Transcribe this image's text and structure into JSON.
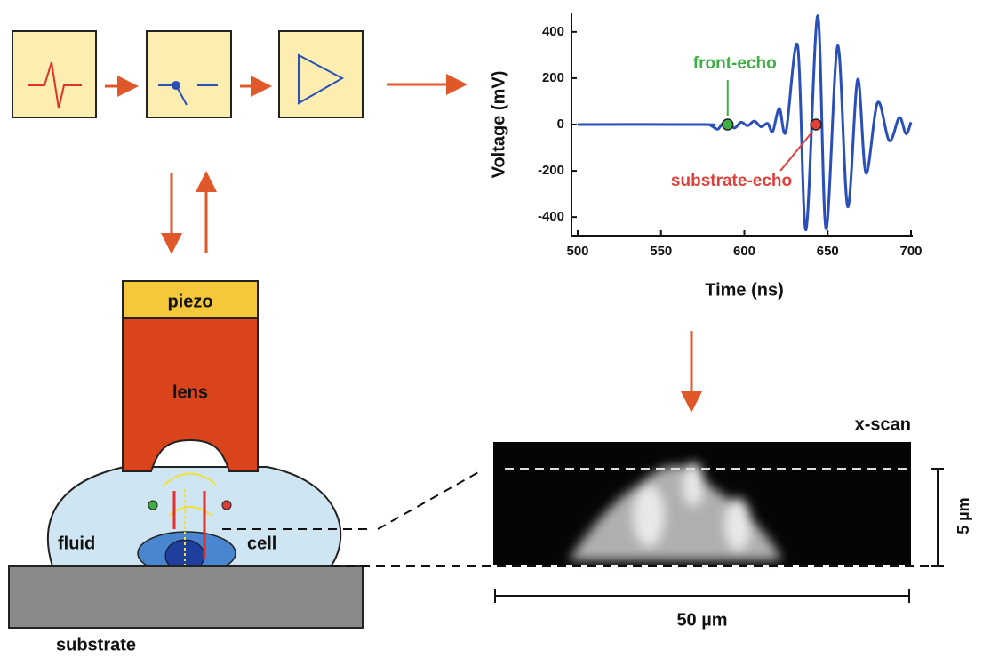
{
  "labels": {
    "piezo": "piezo",
    "lens": "lens",
    "fluid": "fluid",
    "cell": "cell",
    "substrate": "substrate",
    "x_scan": "x-scan",
    "scale_depth": "5 µm",
    "scale_width": "50 µm"
  },
  "chart_data": {
    "type": "line",
    "xlabel": "Time (ns)",
    "ylabel": "Voltage (mV)",
    "xlim": [
      500,
      700
    ],
    "xticks": [
      500,
      550,
      600,
      650,
      700
    ],
    "ylim": [
      -480,
      480
    ],
    "yticks": [
      -400,
      -200,
      0,
      200,
      400
    ],
    "series": [
      {
        "color": "#2a4fb8",
        "x": [
          500,
          575,
          580,
          584,
          587,
          590,
          594,
          598,
          602,
          606,
          610,
          614,
          617,
          621,
          625,
          632,
          637,
          644,
          649,
          656,
          662,
          668,
          673,
          680,
          687,
          693,
          697,
          700
        ],
        "values": [
          0,
          0,
          -5,
          -20,
          5,
          10,
          -15,
          10,
          -5,
          15,
          -10,
          5,
          -30,
          70,
          -30,
          340,
          -455,
          470,
          -450,
          340,
          -355,
          195,
          -210,
          95,
          -70,
          30,
          -40,
          10
        ]
      }
    ],
    "annotations": [
      {
        "text": "front-echo",
        "x": 590,
        "y": 0,
        "color": "#3cb043"
      },
      {
        "text": "substrate-echo",
        "x": 643,
        "y": 0,
        "color": "#e0403a"
      }
    ]
  }
}
